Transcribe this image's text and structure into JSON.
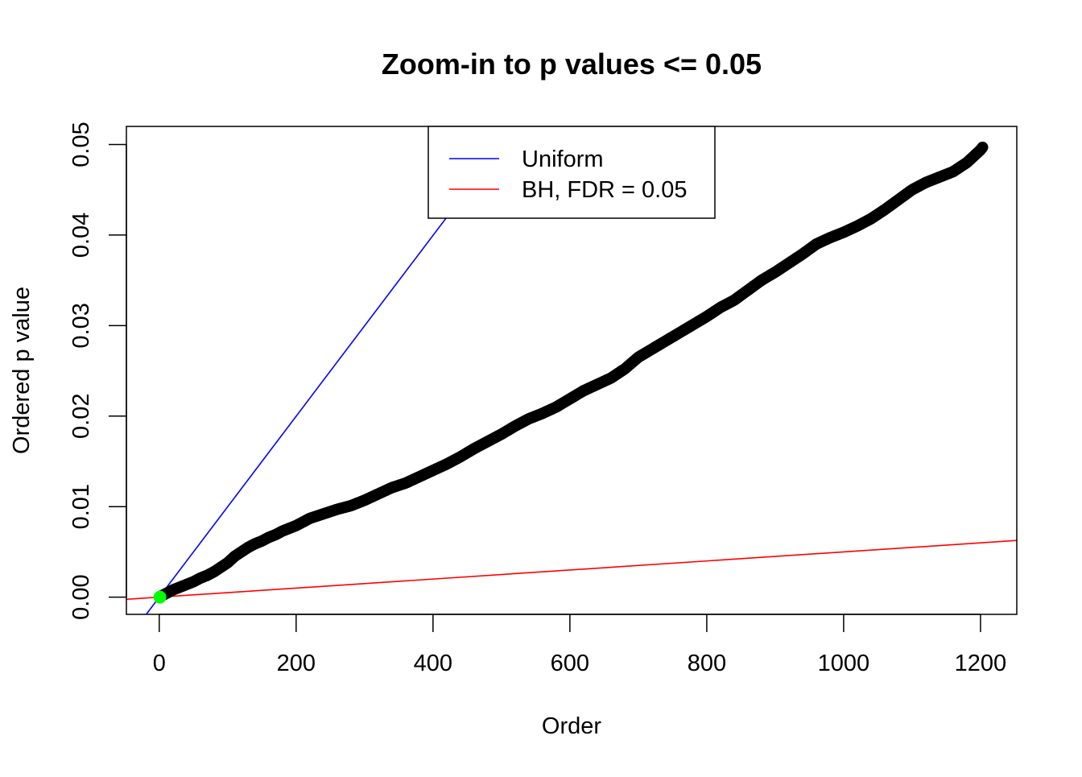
{
  "chart_data": {
    "type": "scatter",
    "title": "Zoom-in to p values <= 0.05",
    "xlabel": "Order",
    "ylabel": "Ordered p value",
    "xlim": [
      -48,
      1253
    ],
    "ylim": [
      -0.0019,
      0.052
    ],
    "x_ticks": [
      0,
      200,
      400,
      600,
      800,
      1000,
      1200
    ],
    "x_tick_labels": [
      "0",
      "200",
      "400",
      "600",
      "800",
      "1000",
      "1200"
    ],
    "y_ticks": [
      0.0,
      0.01,
      0.02,
      0.03,
      0.04,
      0.05
    ],
    "y_tick_labels": [
      "0.00",
      "0.01",
      "0.02",
      "0.03",
      "0.04",
      "0.05"
    ],
    "grid": false,
    "legend_position": "top-center",
    "series": [
      {
        "kind": "points",
        "color": "#000000",
        "n_points": 1203,
        "points": [
          [
            1,
            5e-05
          ],
          [
            5,
            0.0002
          ],
          [
            10,
            0.0004
          ],
          [
            15,
            0.0006
          ],
          [
            20,
            0.0008
          ],
          [
            30,
            0.0011
          ],
          [
            40,
            0.0014
          ],
          [
            50,
            0.0017
          ],
          [
            60,
            0.0021
          ],
          [
            70,
            0.0024
          ],
          [
            80,
            0.0028
          ],
          [
            90,
            0.0033
          ],
          [
            100,
            0.0038
          ],
          [
            110,
            0.0045
          ],
          [
            120,
            0.005
          ],
          [
            130,
            0.0055
          ],
          [
            140,
            0.0059
          ],
          [
            150,
            0.0062
          ],
          [
            160,
            0.0066
          ],
          [
            170,
            0.0069
          ],
          [
            180,
            0.0073
          ],
          [
            190,
            0.0076
          ],
          [
            200,
            0.0079
          ],
          [
            210,
            0.0083
          ],
          [
            220,
            0.0087
          ],
          [
            240,
            0.0092
          ],
          [
            260,
            0.0097
          ],
          [
            280,
            0.0101
          ],
          [
            300,
            0.0107
          ],
          [
            320,
            0.0114
          ],
          [
            340,
            0.0121
          ],
          [
            360,
            0.0126
          ],
          [
            380,
            0.0133
          ],
          [
            400,
            0.014
          ],
          [
            420,
            0.0147
          ],
          [
            440,
            0.0155
          ],
          [
            460,
            0.0164
          ],
          [
            480,
            0.0172
          ],
          [
            500,
            0.018
          ],
          [
            520,
            0.0189
          ],
          [
            540,
            0.0197
          ],
          [
            560,
            0.0203
          ],
          [
            580,
            0.021
          ],
          [
            600,
            0.0219
          ],
          [
            620,
            0.0228
          ],
          [
            640,
            0.0235
          ],
          [
            660,
            0.0242
          ],
          [
            680,
            0.0252
          ],
          [
            700,
            0.0265
          ],
          [
            720,
            0.0274
          ],
          [
            740,
            0.0283
          ],
          [
            760,
            0.0292
          ],
          [
            780,
            0.0301
          ],
          [
            800,
            0.031
          ],
          [
            820,
            0.032
          ],
          [
            840,
            0.0328
          ],
          [
            860,
            0.0339
          ],
          [
            880,
            0.035
          ],
          [
            900,
            0.0359
          ],
          [
            920,
            0.0369
          ],
          [
            940,
            0.0379
          ],
          [
            960,
            0.039
          ],
          [
            980,
            0.0397
          ],
          [
            1000,
            0.0403
          ],
          [
            1020,
            0.041
          ],
          [
            1040,
            0.0418
          ],
          [
            1060,
            0.0428
          ],
          [
            1080,
            0.0439
          ],
          [
            1100,
            0.045
          ],
          [
            1120,
            0.0458
          ],
          [
            1140,
            0.0464
          ],
          [
            1160,
            0.047
          ],
          [
            1180,
            0.048
          ],
          [
            1200,
            0.0494
          ],
          [
            1203,
            0.0497
          ]
        ]
      },
      {
        "kind": "point",
        "color": "#00ff00",
        "points": [
          [
            1,
            0.0
          ]
        ]
      }
    ],
    "lines": [
      {
        "name": "Uniform",
        "color": "#0000ff",
        "intercept": 0,
        "slope": 9.99e-05
      },
      {
        "name": "BH, FDR = 0.05",
        "color": "#ff0000",
        "intercept": 0,
        "slope": 5e-06
      }
    ],
    "legend": [
      {
        "label": "Uniform",
        "color": "#0000ff"
      },
      {
        "label": "BH, FDR = 0.05",
        "color": "#ff0000"
      }
    ]
  }
}
